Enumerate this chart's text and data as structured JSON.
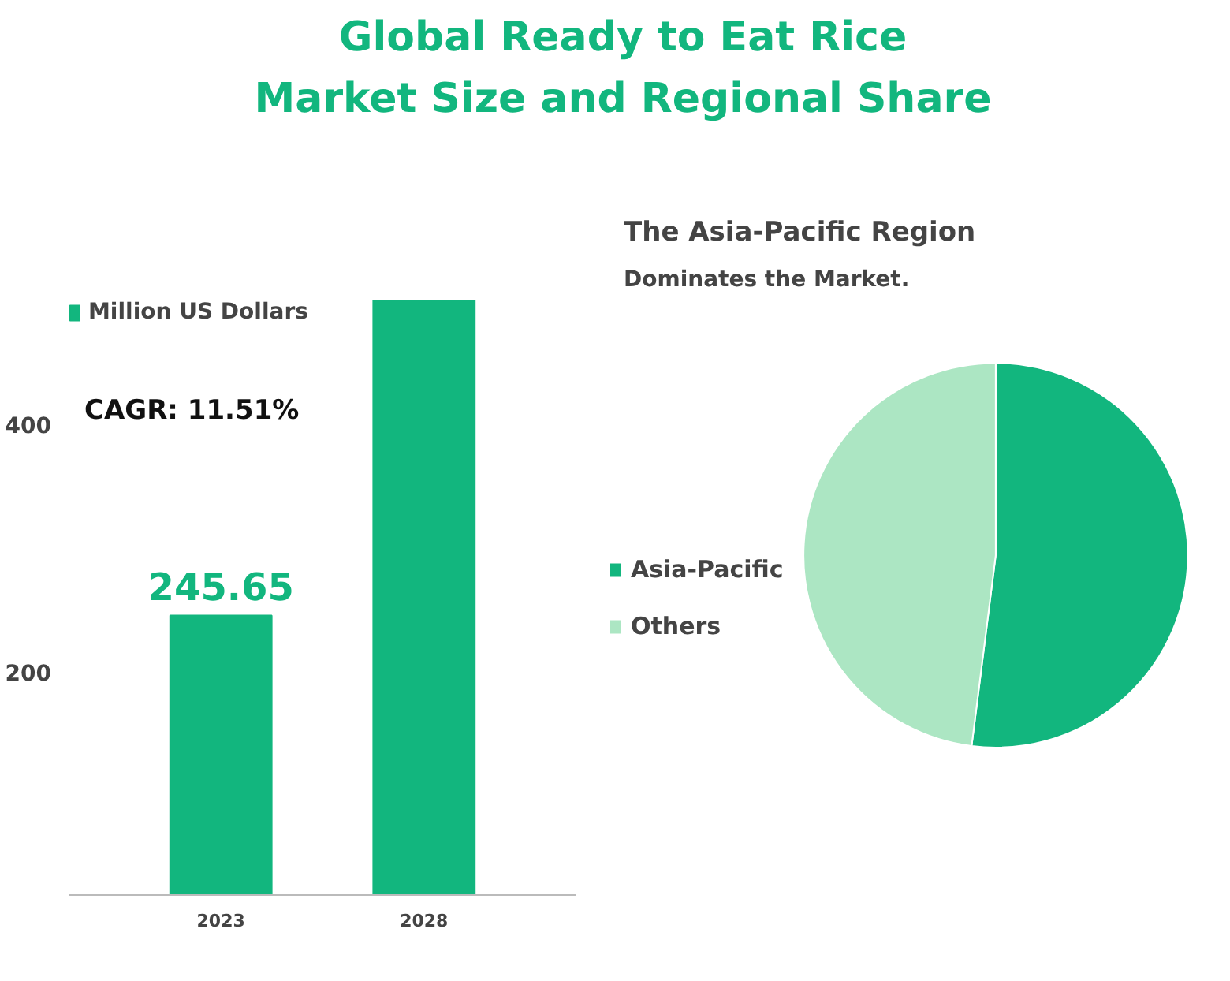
{
  "chart_data": [
    {
      "type": "bar",
      "title": "Global Ready to Eat Rice Market Size and Regional Share",
      "categories": [
        "2023",
        "2028"
      ],
      "series": [
        {
          "name": "Million US Dollars",
          "color": "#12b67e",
          "values": [
            245.65,
            500
          ]
        }
      ],
      "value_labels": [
        "245.65",
        null
      ],
      "ylim": [
        20,
        500
      ],
      "yticks": [
        200,
        400
      ],
      "annotations": [
        "CAGR: 11.51%"
      ],
      "legend": "top left",
      "grid": false
    },
    {
      "type": "pie",
      "title": "The Asia-Pacific Region",
      "subtitle": "Dominates the Market.",
      "categories": [
        "Asia-Pacific",
        "Others"
      ],
      "values": [
        52,
        48
      ],
      "colors": [
        "#12b67e",
        "#ace6c3"
      ],
      "legend": "left"
    }
  ]
}
